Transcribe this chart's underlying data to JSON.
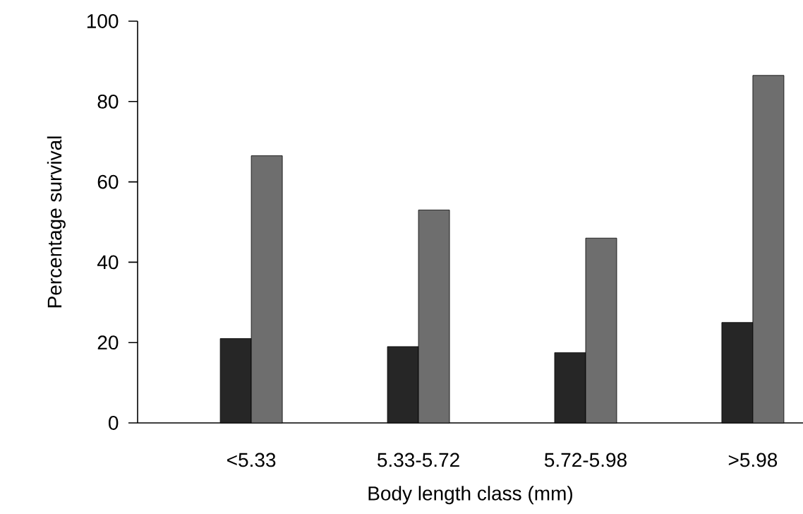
{
  "chart_data": {
    "type": "bar",
    "xlabel": "Body length class (mm)",
    "ylabel": "Percentage survival",
    "categories": [
      "<5.33",
      "5.33-5.72",
      "5.72-5.98",
      ">5.98"
    ],
    "series": [
      {
        "color": "#262626",
        "values": [
          21,
          19,
          17.5,
          25
        ]
      },
      {
        "color": "#6e6e6e",
        "values": [
          66.5,
          53,
          46,
          86.5
        ]
      }
    ],
    "ylim": [
      0,
      100
    ],
    "yticks": [
      0,
      20,
      40,
      60,
      80,
      100
    ]
  }
}
